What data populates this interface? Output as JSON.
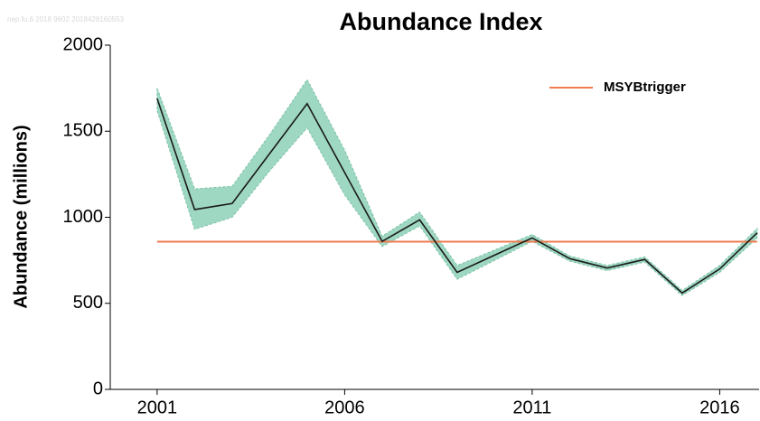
{
  "watermark": "nep.fu.6  2018  9602  2018428160553",
  "chart_data": {
    "type": "line",
    "title": "Abundance Index",
    "y_label": "Abundance (millions)",
    "x": [
      2001,
      2002,
      2003,
      2004,
      2005,
      2006,
      2007,
      2008,
      2009,
      2010,
      2011,
      2012,
      2013,
      2014,
      2015,
      2016,
      2017
    ],
    "series": [
      {
        "color": "#1a1a1a",
        "values": [
          1690,
          1045,
          1080,
          1370,
          1660,
          1260,
          860,
          985,
          680,
          780,
          880,
          760,
          705,
          755,
          560,
          700,
          910
        ]
      }
    ],
    "band": {
      "color": "#9fd8c2",
      "lower": [
        1620,
        930,
        1000,
        1270,
        1520,
        1130,
        830,
        950,
        640,
        750,
        860,
        745,
        690,
        740,
        545,
        680,
        880
      ],
      "upper": [
        1750,
        1165,
        1180,
        1480,
        1800,
        1390,
        890,
        1030,
        720,
        810,
        900,
        775,
        720,
        770,
        575,
        720,
        935
      ]
    },
    "reference": {
      "name": "MSYBtrigger",
      "value": 858,
      "color": "#f07b50",
      "x": [
        2001,
        2017
      ]
    },
    "xlim": [
      1999.75,
      2017.05
    ],
    "xticks": [
      2001,
      2006,
      2011,
      2016
    ],
    "ylim": [
      0,
      2000
    ],
    "yticks": [
      0,
      500,
      1000,
      1500,
      2000
    ],
    "legend": "top-right"
  }
}
